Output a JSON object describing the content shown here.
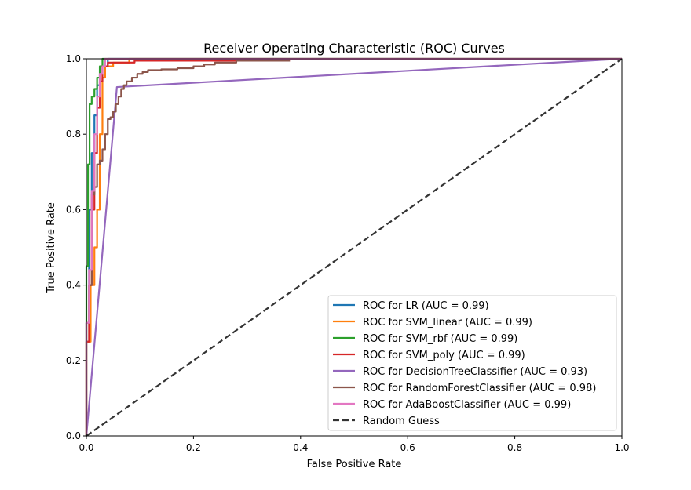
{
  "chart_data": {
    "type": "line",
    "title": "Receiver Operating Characteristic (ROC) Curves",
    "xlabel": "False Positive Rate",
    "ylabel": "True Positive Rate",
    "xlim": [
      0,
      1
    ],
    "ylim": [
      0,
      1
    ],
    "xticks": [
      "0.0",
      "0.2",
      "0.4",
      "0.6",
      "0.8",
      "1.0"
    ],
    "yticks": [
      "0.0",
      "0.2",
      "0.4",
      "0.6",
      "0.8",
      "1.0"
    ],
    "grid": false,
    "legend_position": "lower-right",
    "series": [
      {
        "name": "ROC for LR (AUC = 0.99)",
        "color": "#1f77b4",
        "x": [
          0,
          0.0,
          0.005,
          0.005,
          0.01,
          0.01,
          0.015,
          0.015,
          0.02,
          0.02,
          0.025,
          0.025,
          0.03,
          0.03,
          0.04,
          0.04,
          1.0
        ],
        "y": [
          0,
          0.3,
          0.3,
          0.6,
          0.6,
          0.75,
          0.75,
          0.85,
          0.85,
          0.93,
          0.93,
          0.96,
          0.96,
          0.98,
          0.98,
          1.0,
          1.0
        ]
      },
      {
        "name": "ROC for SVM_linear (AUC = 0.99)",
        "color": "#ff7f0e",
        "x": [
          0,
          0.0,
          0.008,
          0.008,
          0.015,
          0.015,
          0.02,
          0.02,
          0.025,
          0.025,
          0.03,
          0.03,
          0.035,
          0.035,
          0.05,
          0.05,
          0.08,
          0.08,
          1.0
        ],
        "y": [
          0,
          0.25,
          0.25,
          0.4,
          0.4,
          0.5,
          0.5,
          0.6,
          0.6,
          0.8,
          0.8,
          0.95,
          0.95,
          0.98,
          0.98,
          0.99,
          0.99,
          1.0,
          1.0
        ]
      },
      {
        "name": "ROC for SVM_rbf (AUC = 0.99)",
        "color": "#2ca02c",
        "x": [
          0,
          0.0,
          0.003,
          0.003,
          0.006,
          0.006,
          0.01,
          0.01,
          0.015,
          0.015,
          0.02,
          0.02,
          0.025,
          0.025,
          0.03,
          0.03,
          1.0
        ],
        "y": [
          0,
          0.45,
          0.45,
          0.72,
          0.72,
          0.88,
          0.88,
          0.9,
          0.9,
          0.92,
          0.92,
          0.95,
          0.95,
          0.98,
          0.98,
          1.0,
          1.0
        ]
      },
      {
        "name": "ROC for SVM_poly (AUC = 0.99)",
        "color": "#d62728",
        "x": [
          0,
          0.0,
          0.005,
          0.005,
          0.01,
          0.01,
          0.015,
          0.015,
          0.02,
          0.02,
          0.025,
          0.025,
          0.03,
          0.03,
          0.04,
          0.04,
          0.09,
          0.09,
          0.38
        ],
        "y": [
          0,
          0.25,
          0.25,
          0.4,
          0.4,
          0.6,
          0.6,
          0.75,
          0.75,
          0.87,
          0.87,
          0.94,
          0.94,
          0.98,
          0.98,
          0.99,
          0.99,
          0.995,
          0.995
        ]
      },
      {
        "name": "ROC for DecisionTreeClassifier (AUC = 0.93)",
        "color": "#9467bd",
        "x": [
          0,
          0.057,
          1.0
        ],
        "y": [
          0,
          0.925,
          1.0
        ]
      },
      {
        "name": "ROC for RandomForestClassifier (AUC = 0.98)",
        "color": "#8c564b",
        "x": [
          0,
          0.0,
          0.005,
          0.005,
          0.01,
          0.01,
          0.015,
          0.015,
          0.02,
          0.02,
          0.025,
          0.025,
          0.03,
          0.03,
          0.035,
          0.035,
          0.04,
          0.04,
          0.045,
          0.045,
          0.05,
          0.05,
          0.055,
          0.055,
          0.06,
          0.06,
          0.065,
          0.065,
          0.07,
          0.07,
          0.075,
          0.075,
          0.085,
          0.085,
          0.095,
          0.095,
          0.105,
          0.105,
          0.115,
          0.115,
          0.14,
          0.14,
          0.17,
          0.17,
          0.2,
          0.2,
          0.22,
          0.22,
          0.24,
          0.24,
          0.28,
          0.28,
          0.38
        ],
        "y": [
          0,
          0.3,
          0.3,
          0.4,
          0.4,
          0.64,
          0.64,
          0.66,
          0.66,
          0.72,
          0.72,
          0.73,
          0.73,
          0.76,
          0.76,
          0.8,
          0.8,
          0.84,
          0.84,
          0.845,
          0.845,
          0.86,
          0.86,
          0.88,
          0.88,
          0.9,
          0.9,
          0.92,
          0.92,
          0.93,
          0.93,
          0.94,
          0.94,
          0.95,
          0.95,
          0.96,
          0.96,
          0.965,
          0.965,
          0.97,
          0.97,
          0.972,
          0.972,
          0.975,
          0.975,
          0.98,
          0.98,
          0.985,
          0.985,
          0.99,
          0.99,
          0.995,
          0.995
        ]
      },
      {
        "name": "ROC for AdaBoostClassifier (AUC = 0.99)",
        "color": "#e377c2",
        "x": [
          0,
          0.0,
          0.005,
          0.005,
          0.01,
          0.01,
          0.015,
          0.015,
          0.02,
          0.02,
          0.025,
          0.025,
          0.03,
          0.03,
          0.035,
          0.035,
          1.0
        ],
        "y": [
          0,
          0.3,
          0.3,
          0.44,
          0.44,
          0.65,
          0.65,
          0.8,
          0.8,
          0.9,
          0.9,
          0.96,
          0.96,
          0.98,
          0.98,
          1.0,
          1.0
        ]
      },
      {
        "name": "Random Guess",
        "color": "#333333",
        "dashed": true,
        "x": [
          0,
          1
        ],
        "y": [
          0,
          1
        ]
      }
    ]
  }
}
